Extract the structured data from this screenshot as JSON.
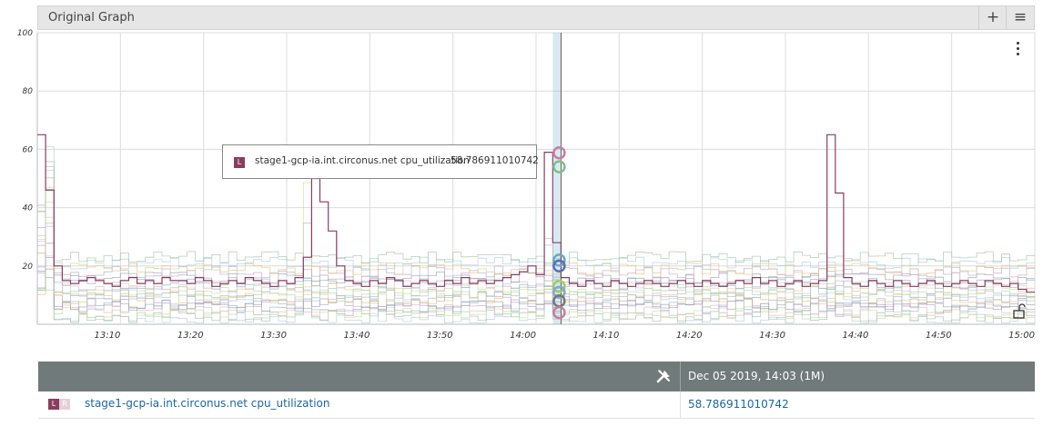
{
  "header": {
    "title": "Original Graph",
    "add_label": "+",
    "menu_label": "≡"
  },
  "colors": {
    "highlight": "#8a3d61",
    "grid": "#dcdcdc",
    "legend_header": "#717a7b",
    "link": "#1a66a6"
  },
  "chart_data": {
    "type": "line",
    "title": "Original Graph",
    "xlabel": "",
    "ylabel": "",
    "ylim": [
      0,
      100
    ],
    "y_ticks": [
      "20",
      "40",
      "60",
      "80",
      "100"
    ],
    "x_ticks": [
      "13:10",
      "13:20",
      "13:30",
      "13:40",
      "13:50",
      "14:00",
      "14:10",
      "14:20",
      "14:30",
      "14:40",
      "14:50",
      "15:00"
    ],
    "x_range": [
      "13:00",
      "15:00"
    ],
    "grid": true,
    "hover_time": "14:03",
    "highlighted_series": {
      "name": "stage1-gcp-ia.int.circonus.net cpu_utilization",
      "color": "#8a3d61",
      "minutes": [
        1,
        2,
        3,
        4,
        5,
        6,
        7,
        8,
        9,
        10,
        11,
        12,
        13,
        14,
        15,
        16,
        17,
        18,
        19,
        20,
        21,
        22,
        23,
        24,
        25,
        26,
        27,
        28,
        29,
        30,
        31,
        32,
        33,
        34,
        35,
        36,
        37,
        38,
        39,
        40,
        41,
        42,
        43,
        44,
        45,
        46,
        47,
        48,
        49,
        50,
        51,
        52,
        53,
        54,
        55,
        56,
        57,
        58,
        59,
        60,
        61,
        62,
        63,
        64,
        65,
        66,
        67,
        68,
        69,
        70,
        71,
        72,
        73,
        74,
        75,
        76,
        77,
        78,
        79,
        80,
        81,
        82,
        83,
        84,
        85,
        86,
        87,
        88,
        89,
        90,
        91,
        92,
        93,
        94,
        95,
        96,
        97,
        98,
        99,
        100,
        101,
        102,
        103,
        104,
        105,
        106,
        107,
        108,
        109,
        110,
        111,
        112,
        113,
        114,
        115,
        116,
        117,
        118,
        119,
        120
      ],
      "values": [
        65,
        46,
        20,
        15,
        14,
        15,
        16,
        15,
        14,
        13,
        15,
        16,
        14,
        15,
        14,
        16,
        15,
        15,
        14,
        16,
        15,
        13,
        14,
        15,
        14,
        16,
        15,
        14,
        13,
        15,
        14,
        16,
        23,
        50,
        42,
        32,
        20,
        15,
        14,
        13,
        15,
        14,
        16,
        15,
        13,
        14,
        15,
        14,
        13,
        15,
        14,
        16,
        14,
        15,
        14,
        15,
        16,
        17,
        18,
        20,
        17,
        59,
        28,
        16,
        14,
        13,
        15,
        14,
        13,
        15,
        14,
        13,
        14,
        15,
        14,
        13,
        14,
        15,
        14,
        13,
        15,
        14,
        13,
        14,
        15,
        14,
        16,
        14,
        15,
        13,
        14,
        15,
        13,
        14,
        15,
        65,
        45,
        16,
        14,
        13,
        15,
        14,
        13,
        15,
        14,
        13,
        14,
        15,
        14,
        13,
        14,
        15,
        14,
        13,
        15,
        14,
        13,
        14,
        12,
        11
      ]
    },
    "background_series_colors": [
      "#a9cbd9",
      "#9bc29f",
      "#c9d98c",
      "#d9b3c4",
      "#8fa8c9",
      "#999999",
      "#b8a0cc",
      "#e0c27a"
    ],
    "hover_marker_colors": [
      "#c47fa0",
      "#7fbf8a",
      "#6aa8c9",
      "#5b6fb5",
      "#9bd05c",
      "#7fa8d6",
      "#777777"
    ]
  },
  "tooltip": {
    "marker": "L",
    "series_name": "stage1-gcp-ia.int.circonus.net cpu_utilization",
    "value": "58.786911010742"
  },
  "legend": {
    "header_date": "Dec 05 2019, 14:03  (1M)",
    "rows": [
      {
        "l_label": "L",
        "r_label": "R",
        "metric": "stage1-gcp-ia.int.circonus.net cpu_utilization",
        "value": "58.786911010742"
      }
    ]
  }
}
